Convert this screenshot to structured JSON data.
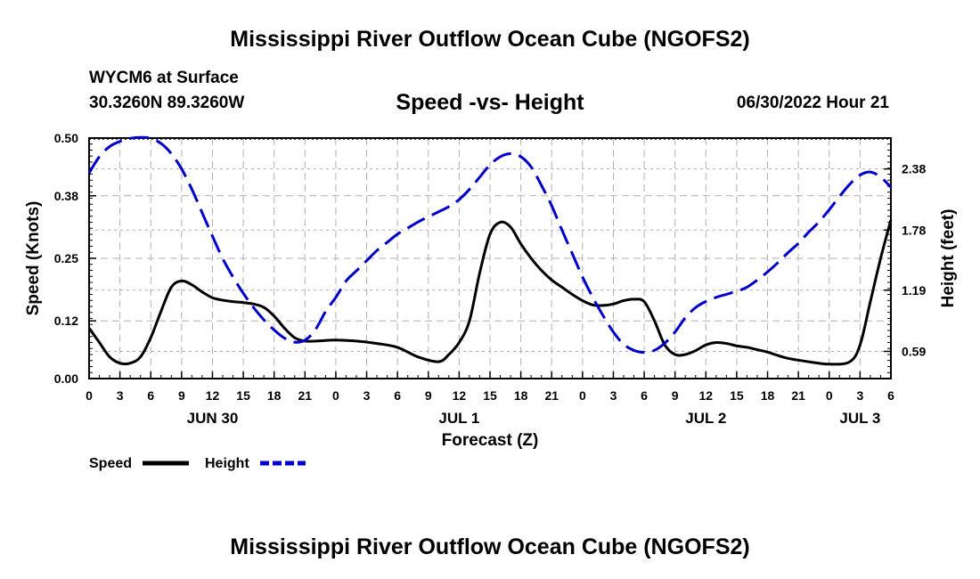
{
  "page": {
    "title": "Mississippi River Outflow Ocean Cube (NGOFS2)",
    "footer_title": "Mississippi River Outflow Ocean Cube (NGOFS2)",
    "station": "WYCM6 at Surface",
    "coords": "30.3260N  89.3260W",
    "subtitle": "Speed -vs- Height",
    "timestamp": "06/30/2022 Hour 21"
  },
  "chart_data": {
    "type": "line",
    "title": "Speed -vs- Height",
    "xlabel": "Forecast (Z)",
    "ylabel": "Speed (Knots)",
    "y2label": "Height (feet)",
    "x_unit": "hours since Jun 30 00Z",
    "xlim": [
      0,
      78
    ],
    "ylim": [
      0,
      0.5
    ],
    "y2lim": [
      0.323,
      2.683
    ],
    "x_ticks": [
      0,
      3,
      6,
      9,
      12,
      15,
      18,
      21,
      24,
      27,
      30,
      33,
      36,
      39,
      42,
      45,
      48,
      51,
      54,
      57,
      60,
      63,
      66,
      69,
      72,
      75,
      78
    ],
    "x_tick_labels": [
      "0",
      "3",
      "6",
      "9",
      "12",
      "15",
      "18",
      "21",
      "0",
      "3",
      "6",
      "9",
      "12",
      "15",
      "18",
      "21",
      "0",
      "3",
      "6",
      "9",
      "12",
      "15",
      "18",
      "21",
      "0",
      "3",
      "6"
    ],
    "day_labels": [
      {
        "label": "JUN 30",
        "x": 12
      },
      {
        "label": "JUL 1",
        "x": 36
      },
      {
        "label": "JUL 2",
        "x": 60
      },
      {
        "label": "JUL 3",
        "x": 75
      }
    ],
    "y_ticks": [
      0.0,
      0.12,
      0.25,
      0.38,
      0.5
    ],
    "y_tick_labels": [
      "0.00",
      "0.12",
      "0.25",
      "0.38",
      "0.50"
    ],
    "y2_ticks": [
      0.59,
      1.19,
      1.78,
      2.38
    ],
    "y2_tick_labels": [
      "0.59",
      "1.19",
      "1.78",
      "2.38"
    ],
    "grid": true,
    "legend": "bottom-left",
    "series": [
      {
        "name": "Speed",
        "axis": "left",
        "color": "#000000",
        "dash": "solid",
        "x": [
          0,
          1,
          2,
          3,
          4,
          5,
          6,
          7,
          8,
          9,
          10,
          11,
          12,
          13,
          14,
          15,
          16,
          17,
          18,
          19,
          20,
          21,
          22,
          24,
          26,
          28,
          30,
          32,
          34,
          35,
          36,
          37,
          38,
          39,
          40,
          41,
          42,
          43,
          44,
          45,
          46,
          47,
          48,
          49,
          50,
          51,
          52,
          53,
          54,
          55,
          56,
          57,
          58,
          59,
          60,
          61,
          62,
          63,
          64,
          65,
          66,
          67,
          68,
          70,
          72,
          74,
          75,
          76,
          77,
          78
        ],
        "values": [
          0.105,
          0.075,
          0.045,
          0.032,
          0.032,
          0.045,
          0.085,
          0.14,
          0.19,
          0.203,
          0.195,
          0.18,
          0.168,
          0.163,
          0.16,
          0.158,
          0.155,
          0.148,
          0.13,
          0.105,
          0.085,
          0.078,
          0.078,
          0.08,
          0.078,
          0.073,
          0.065,
          0.045,
          0.035,
          0.05,
          0.075,
          0.12,
          0.22,
          0.3,
          0.325,
          0.315,
          0.28,
          0.25,
          0.225,
          0.205,
          0.19,
          0.175,
          0.162,
          0.153,
          0.152,
          0.155,
          0.162,
          0.165,
          0.16,
          0.12,
          0.07,
          0.05,
          0.05,
          0.058,
          0.07,
          0.075,
          0.073,
          0.068,
          0.065,
          0.06,
          0.055,
          0.048,
          0.042,
          0.035,
          0.03,
          0.035,
          0.07,
          0.16,
          0.25,
          0.33
        ]
      },
      {
        "name": "Height",
        "axis": "right",
        "color": "#0000cc",
        "dash": "dashed",
        "x": [
          0,
          1,
          2,
          3,
          4,
          5,
          6,
          7,
          8,
          9,
          10,
          11,
          12,
          13,
          14,
          15,
          16,
          17,
          18,
          19,
          20,
          21,
          22,
          23,
          24,
          25,
          26,
          27,
          28,
          29,
          30,
          31,
          32,
          33,
          34,
          35,
          36,
          37,
          38,
          39,
          40,
          41,
          42,
          43,
          44,
          45,
          46,
          47,
          48,
          49,
          50,
          51,
          52,
          53,
          54,
          55,
          56,
          57,
          58,
          59,
          60,
          61,
          62,
          63,
          64,
          65,
          66,
          67,
          68,
          69,
          70,
          71,
          72,
          73,
          74,
          75,
          76,
          77,
          78
        ],
        "values": [
          2.34,
          2.5,
          2.6,
          2.65,
          2.68,
          2.69,
          2.68,
          2.63,
          2.53,
          2.38,
          2.18,
          1.95,
          1.72,
          1.5,
          1.32,
          1.16,
          1.02,
          0.9,
          0.8,
          0.72,
          0.68,
          0.7,
          0.8,
          0.98,
          1.12,
          1.28,
          1.38,
          1.48,
          1.58,
          1.66,
          1.74,
          1.8,
          1.86,
          1.91,
          1.96,
          2.01,
          2.08,
          2.18,
          2.3,
          2.42,
          2.5,
          2.53,
          2.5,
          2.4,
          2.22,
          2.02,
          1.78,
          1.55,
          1.32,
          1.12,
          0.94,
          0.78,
          0.66,
          0.6,
          0.58,
          0.6,
          0.67,
          0.78,
          0.92,
          1.02,
          1.08,
          1.12,
          1.15,
          1.18,
          1.22,
          1.29,
          1.37,
          1.46,
          1.56,
          1.65,
          1.76,
          1.86,
          1.98,
          2.11,
          2.23,
          2.32,
          2.35,
          2.3,
          2.2
        ]
      }
    ]
  }
}
